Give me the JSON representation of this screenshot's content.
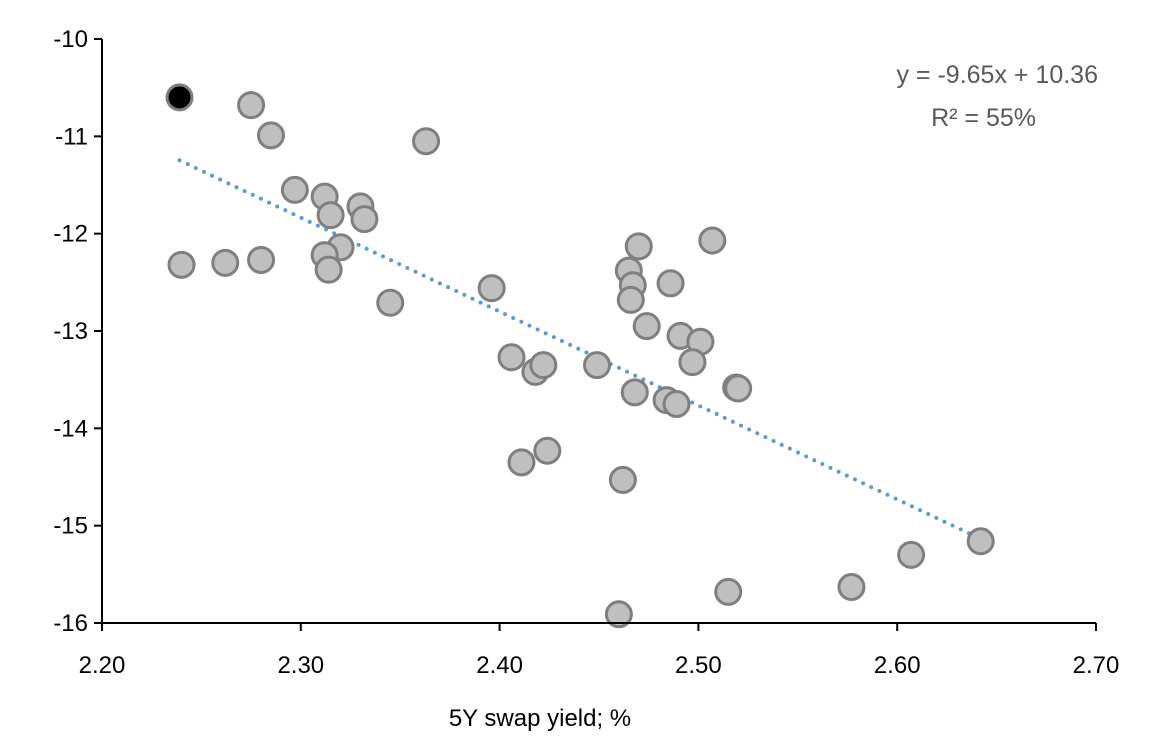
{
  "chart_data": {
    "type": "scatter",
    "title": "",
    "xlabel": "5Y swap yield; %",
    "ylabel": "",
    "xlim": [
      2.2,
      2.7
    ],
    "ylim": [
      -16,
      -10
    ],
    "xticks": [
      "2.20",
      "2.30",
      "2.40",
      "2.50",
      "2.60",
      "2.70"
    ],
    "yticks": [
      "-10",
      "-11",
      "-12",
      "-13",
      "-14",
      "-15",
      "-16"
    ],
    "grid": false,
    "colors": {
      "point_fill": "#bfbfbf",
      "point_stroke": "#7f7f7f",
      "highlight_fill": "#000000",
      "trend": "#5b9bd5"
    },
    "highlight": {
      "x": 2.239,
      "y": -10.6
    },
    "points": [
      {
        "x": 2.275,
        "y": -10.68
      },
      {
        "x": 2.285,
        "y": -10.99
      },
      {
        "x": 2.363,
        "y": -11.05
      },
      {
        "x": 2.297,
        "y": -11.55
      },
      {
        "x": 2.312,
        "y": -11.62
      },
      {
        "x": 2.33,
        "y": -11.72
      },
      {
        "x": 2.315,
        "y": -11.81
      },
      {
        "x": 2.332,
        "y": -11.85
      },
      {
        "x": 2.32,
        "y": -12.14
      },
      {
        "x": 2.312,
        "y": -12.22
      },
      {
        "x": 2.24,
        "y": -12.32
      },
      {
        "x": 2.262,
        "y": -12.3
      },
      {
        "x": 2.28,
        "y": -12.27
      },
      {
        "x": 2.314,
        "y": -12.37
      },
      {
        "x": 2.345,
        "y": -12.71
      },
      {
        "x": 2.396,
        "y": -12.56
      },
      {
        "x": 2.507,
        "y": -12.07
      },
      {
        "x": 2.47,
        "y": -12.13
      },
      {
        "x": 2.465,
        "y": -12.38
      },
      {
        "x": 2.467,
        "y": -12.53
      },
      {
        "x": 2.466,
        "y": -12.68
      },
      {
        "x": 2.486,
        "y": -12.51
      },
      {
        "x": 2.474,
        "y": -12.95
      },
      {
        "x": 2.406,
        "y": -13.27
      },
      {
        "x": 2.491,
        "y": -13.05
      },
      {
        "x": 2.501,
        "y": -13.11
      },
      {
        "x": 2.497,
        "y": -13.32
      },
      {
        "x": 2.418,
        "y": -13.42
      },
      {
        "x": 2.422,
        "y": -13.35
      },
      {
        "x": 2.449,
        "y": -13.35
      },
      {
        "x": 2.468,
        "y": -13.63
      },
      {
        "x": 2.484,
        "y": -13.71
      },
      {
        "x": 2.489,
        "y": -13.75
      },
      {
        "x": 2.519,
        "y": -13.58
      },
      {
        "x": 2.52,
        "y": -13.59
      },
      {
        "x": 2.424,
        "y": -14.23
      },
      {
        "x": 2.411,
        "y": -14.35
      },
      {
        "x": 2.462,
        "y": -14.53
      },
      {
        "x": 2.46,
        "y": -15.91
      },
      {
        "x": 2.515,
        "y": -15.68
      },
      {
        "x": 2.577,
        "y": -15.63
      },
      {
        "x": 2.607,
        "y": -15.3
      },
      {
        "x": 2.642,
        "y": -15.16
      }
    ],
    "trendline": {
      "slope": -9.65,
      "intercept": 10.36,
      "x_range": [
        2.239,
        2.642
      ]
    },
    "annotations": {
      "equation": "y = -9.65x + 10.36",
      "r2": "R² = 55%"
    }
  }
}
